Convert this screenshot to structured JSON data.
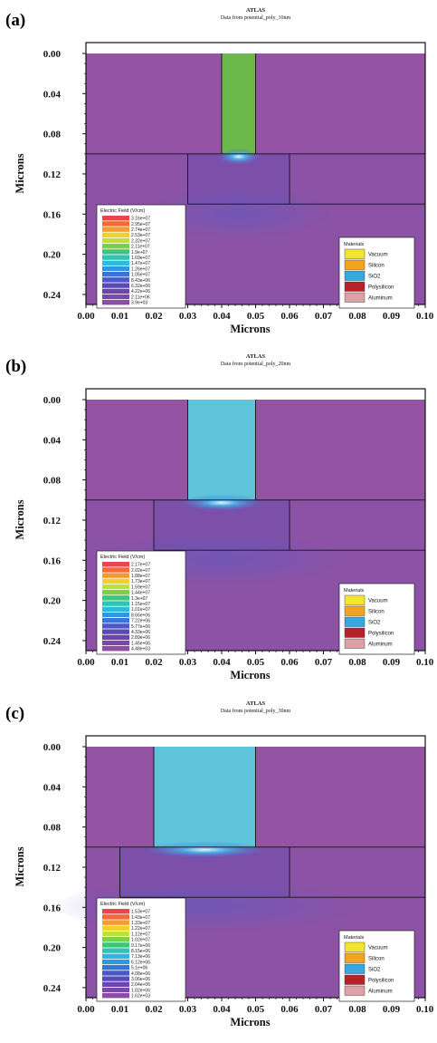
{
  "colors": {
    "background": "#9553a4",
    "oxide_fill": "#8b52a6",
    "silicon_fill": "#7c4fa8",
    "frame": "#111111"
  },
  "chart_data": [
    {
      "type": "heatmap",
      "panel_label": "(a)",
      "title": "ATLAS",
      "subtitle": "Data from potential_poly_10nm",
      "xlabel": "Microns",
      "ylabel": "Microns",
      "xlim": [
        0,
        0.1
      ],
      "ylim": [
        0,
        0.25
      ],
      "x_ticks": [
        "0.00",
        "0.01",
        "0.02",
        "0.03",
        "0.04",
        "0.05",
        "0.06",
        "0.07",
        "0.08",
        "0.09",
        "0.10"
      ],
      "y_ticks": [
        "0.00",
        "0.04",
        "0.08",
        "0.12",
        "0.16",
        "0.20",
        "0.24"
      ],
      "regions": {
        "gate": {
          "x": [
            0.04,
            0.05
          ],
          "y": [
            0.0,
            0.1
          ],
          "color": "#6cb84a"
        },
        "channel": {
          "x": [
            0.03,
            0.06
          ],
          "y": [
            0.1,
            0.15
          ]
        },
        "interface_y": 0.1,
        "bottom_line_y": 0.15,
        "hotspot": {
          "x": 0.045,
          "y": 0.1
        }
      },
      "legend": {
        "title": "Electric Field (V/cm)",
        "values": [
          "3.16e+07",
          "2.95e+07",
          "2.74e+07",
          "2.53e+07",
          "2.32e+07",
          "2.11e+07",
          "1.9e+07",
          "1.69e+07",
          "1.47e+07",
          "1.26e+07",
          "1.05e+07",
          "8.43e+06",
          "6.32e+06",
          "4.22e+06",
          "2.11e+06",
          "3.9e+03"
        ]
      },
      "materials": {
        "title": "Materials",
        "items": [
          {
            "name": "Vacuum",
            "color": "#f2e52e"
          },
          {
            "name": "Silicon",
            "color": "#f3a41e"
          },
          {
            "name": "SiO2",
            "color": "#36a8df"
          },
          {
            "name": "Polysilicon",
            "color": "#b72229"
          },
          {
            "name": "Aluminum",
            "color": "#dba1a6"
          }
        ]
      }
    },
    {
      "type": "heatmap",
      "panel_label": "(b)",
      "title": "ATLAS",
      "subtitle": "Data from potential_poly_20nm",
      "xlabel": "Microns",
      "ylabel": "Microns",
      "xlim": [
        0,
        0.1
      ],
      "ylim": [
        0,
        0.25
      ],
      "x_ticks": [
        "0.00",
        "0.01",
        "0.02",
        "0.03",
        "0.04",
        "0.05",
        "0.06",
        "0.07",
        "0.08",
        "0.09",
        "0.10"
      ],
      "y_ticks": [
        "0.00",
        "0.04",
        "0.08",
        "0.12",
        "0.16",
        "0.20",
        "0.24"
      ],
      "regions": {
        "gate": {
          "x": [
            0.03,
            0.05
          ],
          "y": [
            0.0,
            0.1
          ],
          "color": "#5fc3d9"
        },
        "channel": {
          "x": [
            0.02,
            0.06
          ],
          "y": [
            0.1,
            0.15
          ]
        },
        "interface_y": 0.1,
        "bottom_line_y": 0.15,
        "hotspot": {
          "x": 0.04,
          "y": 0.1
        }
      },
      "legend": {
        "title": "Electric Field (V/cm)",
        "values": [
          "2.17e+07",
          "2.02e+07",
          "1.88e+07",
          "1.73e+07",
          "1.59e+07",
          "1.44e+07",
          "1.3e+07",
          "1.15e+07",
          "1.01e+07",
          "8.66e+06",
          "7.22e+06",
          "5.77e+06",
          "4.33e+06",
          "2.89e+06",
          "1.45e+06",
          "4.48e+03"
        ]
      },
      "materials": {
        "title": "Materials",
        "items": [
          {
            "name": "Vacuum",
            "color": "#f2e52e"
          },
          {
            "name": "Silicon",
            "color": "#f3a41e"
          },
          {
            "name": "SiO2",
            "color": "#36a8df"
          },
          {
            "name": "Polysilicon",
            "color": "#b72229"
          },
          {
            "name": "Aluminum",
            "color": "#dba1a6"
          }
        ]
      }
    },
    {
      "type": "heatmap",
      "panel_label": "(c)",
      "title": "ATLAS",
      "subtitle": "Data from potential_poly_30nm",
      "xlabel": "Microns",
      "ylabel": "Microns",
      "xlim": [
        0,
        0.1
      ],
      "ylim": [
        0,
        0.25
      ],
      "x_ticks": [
        "0.00",
        "0.01",
        "0.02",
        "0.03",
        "0.04",
        "0.05",
        "0.06",
        "0.07",
        "0.08",
        "0.09",
        "0.10"
      ],
      "y_ticks": [
        "0.00",
        "0.04",
        "0.08",
        "0.12",
        "0.16",
        "0.20",
        "0.24"
      ],
      "regions": {
        "gate": {
          "x": [
            0.02,
            0.05
          ],
          "y": [
            0.0,
            0.1
          ],
          "color": "#5fc3d9"
        },
        "channel": {
          "x": [
            0.01,
            0.06
          ],
          "y": [
            0.1,
            0.15
          ]
        },
        "interface_y": 0.1,
        "bottom_line_y": 0.15,
        "hotspot": {
          "x": 0.035,
          "y": 0.1
        }
      },
      "legend": {
        "title": "Electric Field (V/cm)",
        "values": [
          "1.53e+07",
          "1.43e+07",
          "1.33e+07",
          "1.22e+07",
          "1.12e+07",
          "1.02e+07",
          "9.17e+06",
          "8.15e+06",
          "7.13e+06",
          "6.12e+06",
          "5.1e+06",
          "4.08e+06",
          "3.06e+06",
          "2.04e+06",
          "1.02e+06",
          "1.62e+03"
        ]
      },
      "materials": {
        "title": "Materials",
        "items": [
          {
            "name": "Vacuum",
            "color": "#f2e52e"
          },
          {
            "name": "Silicon",
            "color": "#f3a41e"
          },
          {
            "name": "SiO2",
            "color": "#36a8df"
          },
          {
            "name": "Polysilicon",
            "color": "#b72229"
          },
          {
            "name": "Aluminum",
            "color": "#dba1a6"
          }
        ]
      }
    }
  ]
}
